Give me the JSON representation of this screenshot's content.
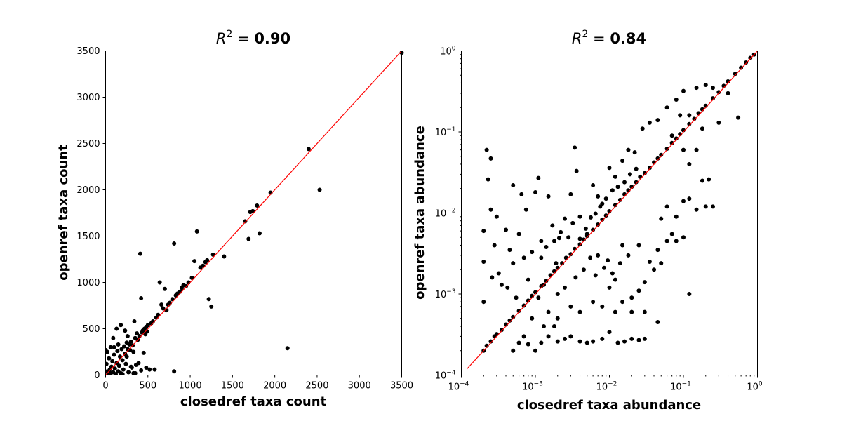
{
  "chart_data": [
    {
      "type": "scatter",
      "title_prefix": "R",
      "title_sup": "2",
      "title_eq": " = ",
      "title_value": "0.90",
      "xlabel": "closedref taxa count",
      "ylabel": "openref taxa count",
      "xlim": [
        0,
        3500
      ],
      "ylim": [
        0,
        3500
      ],
      "xscale": "linear",
      "yscale": "linear",
      "xticks": [
        "0",
        "500",
        "1000",
        "1500",
        "2000",
        "2500",
        "3000",
        "3500"
      ],
      "yticks": [
        "0",
        "500",
        "1000",
        "1500",
        "2000",
        "2500",
        "3000",
        "3500"
      ],
      "point_color": "#000000",
      "line_color": "#ff0000",
      "identity_line": [
        [
          0,
          0
        ],
        [
          3500,
          3500
        ]
      ],
      "points": [
        [
          0,
          270
        ],
        [
          10,
          120
        ],
        [
          20,
          40
        ],
        [
          30,
          10
        ],
        [
          40,
          180
        ],
        [
          50,
          60
        ],
        [
          60,
          20
        ],
        [
          70,
          90
        ],
        [
          80,
          150
        ],
        [
          90,
          30
        ],
        [
          100,
          220
        ],
        [
          110,
          70
        ],
        [
          120,
          10
        ],
        [
          130,
          130
        ],
        [
          140,
          260
        ],
        [
          150,
          40
        ],
        [
          160,
          100
        ],
        [
          170,
          200
        ],
        [
          180,
          20
        ],
        [
          190,
          280
        ],
        [
          200,
          160
        ],
        [
          210,
          60
        ],
        [
          220,
          310
        ],
        [
          230,
          230
        ],
        [
          240,
          120
        ],
        [
          250,
          350
        ],
        [
          260,
          280
        ],
        [
          270,
          30
        ],
        [
          280,
          330
        ],
        [
          290,
          270
        ],
        [
          300,
          360
        ],
        [
          310,
          80
        ],
        [
          320,
          320
        ],
        [
          330,
          20
        ],
        [
          340,
          580
        ],
        [
          350,
          400
        ],
        [
          360,
          110
        ],
        [
          370,
          450
        ],
        [
          380,
          380
        ],
        [
          390,
          130
        ],
        [
          400,
          420
        ],
        [
          410,
          1310
        ],
        [
          420,
          830
        ],
        [
          430,
          460
        ],
        [
          440,
          480
        ],
        [
          450,
          240
        ],
        [
          460,
          500
        ],
        [
          470,
          440
        ],
        [
          480,
          520
        ],
        [
          490,
          470
        ],
        [
          500,
          540
        ],
        [
          520,
          60
        ],
        [
          540,
          560
        ],
        [
          560,
          580
        ],
        [
          580,
          60
        ],
        [
          600,
          620
        ],
        [
          620,
          650
        ],
        [
          640,
          1000
        ],
        [
          660,
          760
        ],
        [
          680,
          720
        ],
        [
          700,
          930
        ],
        [
          720,
          700
        ],
        [
          740,
          760
        ],
        [
          760,
          780
        ],
        [
          790,
          820
        ],
        [
          810,
          1420
        ],
        [
          830,
          860
        ],
        [
          850,
          880
        ],
        [
          880,
          900
        ],
        [
          900,
          940
        ],
        [
          920,
          970
        ],
        [
          950,
          960
        ],
        [
          980,
          1000
        ],
        [
          1020,
          1050
        ],
        [
          1050,
          1230
        ],
        [
          1080,
          1550
        ],
        [
          1120,
          1160
        ],
        [
          1150,
          1180
        ],
        [
          1180,
          1220
        ],
        [
          1200,
          1240
        ],
        [
          1220,
          820
        ],
        [
          1250,
          740
        ],
        [
          1270,
          1300
        ],
        [
          1400,
          1280
        ],
        [
          1650,
          1660
        ],
        [
          1690,
          1470
        ],
        [
          1710,
          1760
        ],
        [
          1740,
          1770
        ],
        [
          1790,
          1830
        ],
        [
          1820,
          1530
        ],
        [
          1950,
          1970
        ],
        [
          2150,
          290
        ],
        [
          2400,
          2440
        ],
        [
          2530,
          2000
        ],
        [
          3500,
          3480
        ],
        [
          810,
          40
        ],
        [
          130,
          500
        ],
        [
          180,
          540
        ],
        [
          230,
          480
        ],
        [
          60,
          300
        ],
        [
          20,
          250
        ],
        [
          90,
          400
        ],
        [
          150,
          330
        ],
        [
          260,
          420
        ],
        [
          300,
          90
        ],
        [
          350,
          20
        ],
        [
          420,
          50
        ],
        [
          480,
          80
        ],
        [
          200,
          10
        ],
        [
          100,
          300
        ],
        [
          250,
          200
        ],
        [
          330,
          250
        ]
      ]
    },
    {
      "type": "scatter",
      "title_prefix": "R",
      "title_sup": "2",
      "title_eq": " = ",
      "title_value": "0.84",
      "xlabel": "closedref taxa abundance",
      "ylabel": "openref taxa abundance",
      "xlim": [
        0.0001,
        1
      ],
      "ylim": [
        0.0001,
        1
      ],
      "xscale": "log",
      "yscale": "log",
      "xticks_base": "10",
      "xticks_exp": [
        "−4",
        "−3",
        "−2",
        "−1",
        "0"
      ],
      "yticks_base": "10",
      "yticks_exp": [
        "−4",
        "−3",
        "−2",
        "−1",
        "0"
      ],
      "point_color": "#000000",
      "line_color": "#ff0000",
      "identity_line": [
        [
          0.00012,
          0.00012
        ],
        [
          1,
          1
        ]
      ],
      "points": [
        [
          0.0002,
          0.0002
        ],
        [
          0.00022,
          0.00023
        ],
        [
          0.00025,
          0.00026
        ],
        [
          0.00028,
          0.0003
        ],
        [
          0.0003,
          0.00032
        ],
        [
          0.00035,
          0.00036
        ],
        [
          0.0004,
          0.00042
        ],
        [
          0.00045,
          0.00047
        ],
        [
          0.0005,
          0.00052
        ],
        [
          0.0006,
          0.00062
        ],
        [
          0.0007,
          0.00072
        ],
        [
          0.0008,
          0.00083
        ],
        [
          0.0009,
          0.00095
        ],
        [
          0.001,
          0.00105
        ],
        [
          0.0012,
          0.00125
        ],
        [
          0.0014,
          0.00145
        ],
        [
          0.0016,
          0.0017
        ],
        [
          0.0018,
          0.0019
        ],
        [
          0.002,
          0.0021
        ],
        [
          0.0023,
          0.0024
        ],
        [
          0.0026,
          0.0028
        ],
        [
          0.003,
          0.0031
        ],
        [
          0.0034,
          0.0036
        ],
        [
          0.004,
          0.0041
        ],
        [
          0.0045,
          0.0047
        ],
        [
          0.005,
          0.0052
        ],
        [
          0.006,
          0.0062
        ],
        [
          0.007,
          0.0072
        ],
        [
          0.008,
          0.0083
        ],
        [
          0.009,
          0.0093
        ],
        [
          0.01,
          0.0105
        ],
        [
          0.012,
          0.0125
        ],
        [
          0.014,
          0.0145
        ],
        [
          0.016,
          0.017
        ],
        [
          0.018,
          0.019
        ],
        [
          0.02,
          0.021
        ],
        [
          0.023,
          0.024
        ],
        [
          0.026,
          0.028
        ],
        [
          0.03,
          0.031
        ],
        [
          0.035,
          0.036
        ],
        [
          0.04,
          0.042
        ],
        [
          0.045,
          0.047
        ],
        [
          0.05,
          0.052
        ],
        [
          0.06,
          0.062
        ],
        [
          0.07,
          0.073
        ],
        [
          0.08,
          0.083
        ],
        [
          0.09,
          0.094
        ],
        [
          0.1,
          0.105
        ],
        [
          0.12,
          0.125
        ],
        [
          0.14,
          0.145
        ],
        [
          0.16,
          0.17
        ],
        [
          0.18,
          0.19
        ],
        [
          0.2,
          0.21
        ],
        [
          0.25,
          0.26
        ],
        [
          0.3,
          0.31
        ],
        [
          0.35,
          0.37
        ],
        [
          0.4,
          0.42
        ],
        [
          0.5,
          0.52
        ],
        [
          0.6,
          0.62
        ],
        [
          0.7,
          0.72
        ],
        [
          0.8,
          0.82
        ],
        [
          0.9,
          0.9
        ],
        [
          0.0002,
          0.0008
        ],
        [
          0.0002,
          0.0025
        ],
        [
          0.0002,
          0.006
        ],
        [
          0.00022,
          0.06
        ],
        [
          0.00023,
          0.026
        ],
        [
          0.00025,
          0.047
        ],
        [
          0.00025,
          0.011
        ],
        [
          0.00026,
          0.0016
        ],
        [
          0.00028,
          0.004
        ],
        [
          0.0003,
          0.009
        ],
        [
          0.00032,
          0.0018
        ],
        [
          0.00035,
          0.0013
        ],
        [
          0.0004,
          0.0062
        ],
        [
          0.00042,
          0.0012
        ],
        [
          0.00045,
          0.0035
        ],
        [
          0.0005,
          0.0024
        ],
        [
          0.0005,
          0.022
        ],
        [
          0.00055,
          0.0009
        ],
        [
          0.0006,
          0.0055
        ],
        [
          0.00065,
          0.017
        ],
        [
          0.0007,
          0.0028
        ],
        [
          0.00075,
          0.011
        ],
        [
          0.0008,
          0.0015
        ],
        [
          0.0009,
          0.0033
        ],
        [
          0.001,
          0.018
        ],
        [
          0.0011,
          0.027
        ],
        [
          0.0012,
          0.0045
        ],
        [
          0.0013,
          0.0013
        ],
        [
          0.0015,
          0.016
        ],
        [
          0.0017,
          0.007
        ],
        [
          0.0019,
          0.0024
        ],
        [
          0.0021,
          0.0049
        ],
        [
          0.0025,
          0.0085
        ],
        [
          0.003,
          0.017
        ],
        [
          0.0034,
          0.064
        ],
        [
          0.0036,
          0.033
        ],
        [
          0.004,
          0.009
        ],
        [
          0.005,
          0.0055
        ],
        [
          0.006,
          0.022
        ],
        [
          0.007,
          0.016
        ],
        [
          0.008,
          0.013
        ],
        [
          0.01,
          0.036
        ],
        [
          0.012,
          0.028
        ],
        [
          0.015,
          0.044
        ],
        [
          0.018,
          0.06
        ],
        [
          0.022,
          0.056
        ],
        [
          0.028,
          0.11
        ],
        [
          0.035,
          0.13
        ],
        [
          0.045,
          0.14
        ],
        [
          0.06,
          0.2
        ],
        [
          0.08,
          0.25
        ],
        [
          0.1,
          0.32
        ],
        [
          0.12,
          0.16
        ],
        [
          0.15,
          0.35
        ],
        [
          0.2,
          0.38
        ],
        [
          0.0005,
          0.0002
        ],
        [
          0.0006,
          0.00025
        ],
        [
          0.0007,
          0.0003
        ],
        [
          0.0008,
          0.00024
        ],
        [
          0.001,
          0.0002
        ],
        [
          0.0012,
          0.00025
        ],
        [
          0.0015,
          0.0003
        ],
        [
          0.0018,
          0.0004
        ],
        [
          0.002,
          0.00026
        ],
        [
          0.0025,
          0.00028
        ],
        [
          0.003,
          0.0003
        ],
        [
          0.004,
          0.00026
        ],
        [
          0.005,
          0.00025
        ],
        [
          0.006,
          0.00026
        ],
        [
          0.008,
          0.00028
        ],
        [
          0.01,
          0.00034
        ],
        [
          0.013,
          0.00025
        ],
        [
          0.016,
          0.00026
        ],
        [
          0.02,
          0.00028
        ],
        [
          0.025,
          0.00027
        ],
        [
          0.03,
          0.00028
        ],
        [
          0.045,
          0.00045
        ],
        [
          0.02,
          0.0006
        ],
        [
          0.03,
          0.0006
        ],
        [
          0.012,
          0.0006
        ],
        [
          0.008,
          0.0007
        ],
        [
          0.006,
          0.0008
        ],
        [
          0.004,
          0.0006
        ],
        [
          0.003,
          0.0007
        ],
        [
          0.002,
          0.0005
        ],
        [
          0.0015,
          0.0006
        ],
        [
          0.01,
          0.0012
        ],
        [
          0.012,
          0.0015
        ],
        [
          0.015,
          0.0008
        ],
        [
          0.02,
          0.0009
        ],
        [
          0.025,
          0.0011
        ],
        [
          0.03,
          0.0014
        ],
        [
          0.04,
          0.002
        ],
        [
          0.05,
          0.0024
        ],
        [
          0.06,
          0.0045
        ],
        [
          0.08,
          0.0045
        ],
        [
          0.1,
          0.005
        ],
        [
          0.12,
          0.001
        ],
        [
          0.07,
          0.0055
        ],
        [
          0.045,
          0.0035
        ],
        [
          0.035,
          0.0025
        ],
        [
          0.025,
          0.004
        ],
        [
          0.018,
          0.003
        ],
        [
          0.014,
          0.0024
        ],
        [
          0.011,
          0.0018
        ],
        [
          0.05,
          0.0085
        ],
        [
          0.06,
          0.012
        ],
        [
          0.08,
          0.009
        ],
        [
          0.1,
          0.014
        ],
        [
          0.12,
          0.015
        ],
        [
          0.15,
          0.011
        ],
        [
          0.2,
          0.012
        ],
        [
          0.22,
          0.026
        ],
        [
          0.25,
          0.012
        ],
        [
          0.18,
          0.025
        ],
        [
          0.12,
          0.04
        ],
        [
          0.1,
          0.06
        ],
        [
          0.15,
          0.06
        ],
        [
          0.18,
          0.11
        ],
        [
          0.3,
          0.13
        ],
        [
          0.55,
          0.15
        ],
        [
          0.4,
          0.3
        ],
        [
          0.25,
          0.35
        ],
        [
          0.09,
          0.16
        ],
        [
          0.07,
          0.09
        ],
        [
          0.015,
          0.004
        ],
        [
          0.0013,
          0.0004
        ],
        [
          0.0009,
          0.0005
        ],
        [
          0.0011,
          0.0009
        ],
        [
          0.002,
          0.001
        ],
        [
          0.0025,
          0.0012
        ],
        [
          0.0035,
          0.0016
        ],
        [
          0.0045,
          0.002
        ],
        [
          0.0055,
          0.0028
        ],
        [
          0.007,
          0.003
        ],
        [
          0.0065,
          0.0017
        ],
        [
          0.0085,
          0.0021
        ],
        [
          0.0095,
          0.0026
        ],
        [
          0.0028,
          0.005
        ],
        [
          0.0022,
          0.0058
        ],
        [
          0.0018,
          0.0045
        ],
        [
          0.0014,
          0.0038
        ],
        [
          0.0012,
          0.0028
        ],
        [
          0.0032,
          0.0075
        ],
        [
          0.004,
          0.0048
        ],
        [
          0.0048,
          0.0064
        ],
        [
          0.0056,
          0.0088
        ],
        [
          0.0065,
          0.0098
        ],
        [
          0.0075,
          0.012
        ],
        [
          0.009,
          0.015
        ],
        [
          0.011,
          0.019
        ],
        [
          0.013,
          0.021
        ],
        [
          0.016,
          0.024
        ],
        [
          0.019,
          0.03
        ],
        [
          0.023,
          0.035
        ]
      ]
    }
  ]
}
